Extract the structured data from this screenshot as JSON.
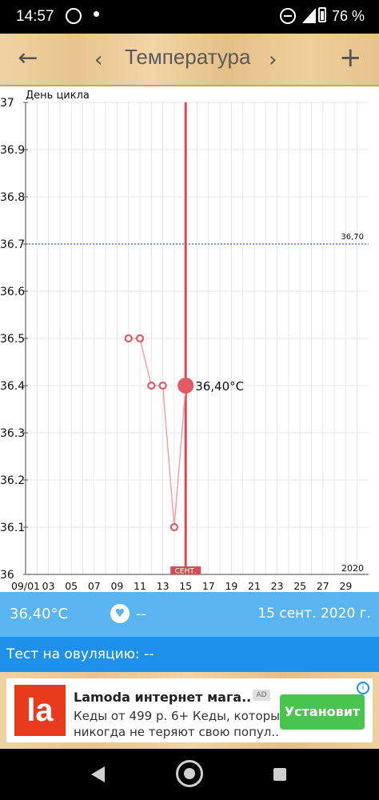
{
  "status_bar": {
    "time": "14:57",
    "battery": "76 %"
  },
  "app_bar": {
    "title": "Температура"
  },
  "chart_data": {
    "type": "line",
    "title": "День цикла",
    "x_tick_labels": [
      "09/01",
      "03",
      "05",
      "07",
      "09",
      "11",
      "13",
      "15",
      "17",
      "19",
      "21",
      "23",
      "25",
      "27",
      "29"
    ],
    "y_tick_labels": [
      "37",
      "36.9",
      "36.8",
      "36.7",
      "36.6",
      "36.5",
      "36.4",
      "36.3",
      "36.2",
      "36.1",
      "36"
    ],
    "ylim": [
      36.0,
      37.0
    ],
    "xlim": [
      1,
      30
    ],
    "series": [
      {
        "x": [
          10,
          11,
          12,
          13,
          14,
          15
        ],
        "values": [
          36.5,
          36.5,
          36.4,
          36.4,
          36.1,
          36.4
        ],
        "color": "#e35a64"
      }
    ],
    "reference_line": {
      "value": 36.7,
      "label": "36,70",
      "color": "#2233aa"
    },
    "selected": {
      "x": 15,
      "value": 36.4,
      "label": "36,40°C"
    },
    "month_label": "СЕНТ.",
    "year_label": "2020",
    "grid": true
  },
  "info_bar": {
    "temperature": "36,40°C",
    "heart_icon": "heart-icon",
    "heart_value": "--",
    "date": "15 сент. 2020 г."
  },
  "ovulation": {
    "text": "Тест на овуляцию: --"
  },
  "ad": {
    "logo_text": "la",
    "title": "Lamoda интернет мага...",
    "badge": "AD",
    "desc_line1": "Кеды от 499 р. 6+ Кеды, которые",
    "desc_line2": "никогда не теряют свою попул...",
    "button": "Установит",
    "info": "i",
    "accent": "#49c44f",
    "logo_color": "#ea3a1d"
  },
  "colors": {
    "info_bar": "#5ab4f2",
    "ovulation_bar": "#1e90ea",
    "series": "#e35a64"
  }
}
